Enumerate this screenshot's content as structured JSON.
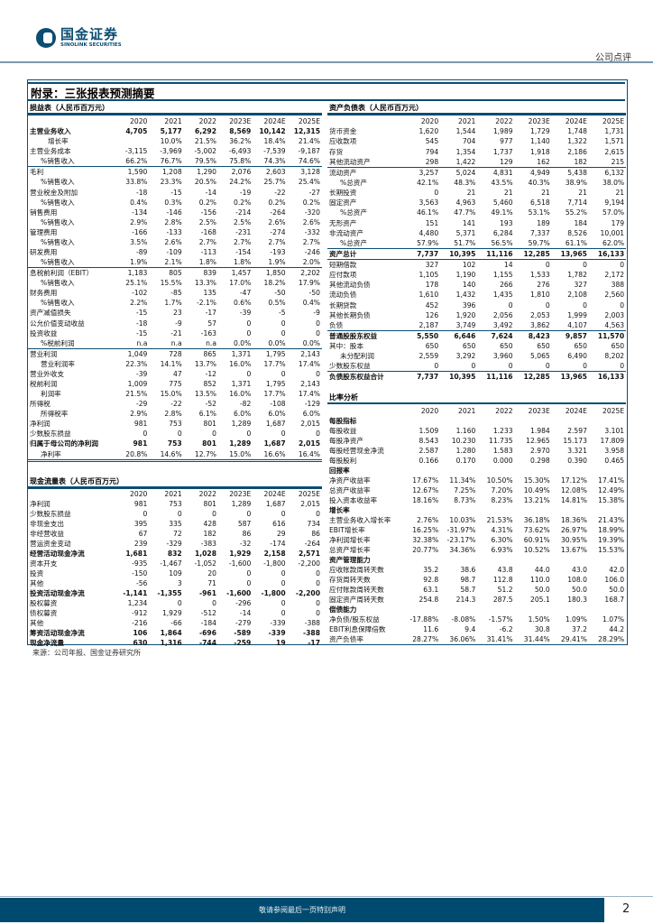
{
  "header": {
    "logo_cn": "国金证券",
    "logo_en": "SINOLINK SECURITIES",
    "doc_type": "公司点评"
  },
  "title": "附录：三张报表预测摘要",
  "years": [
    "2020",
    "2021",
    "2022",
    "2023E",
    "2024E",
    "2025E"
  ],
  "income": {
    "title": "损益表（人民币百万元）",
    "rows": [
      {
        "l": "主营业务收入",
        "v": [
          "4,705",
          "5,177",
          "6,292",
          "8,569",
          "10,142",
          "12,315"
        ],
        "f": "b"
      },
      {
        "l": "增长率",
        "v": [
          "",
          "10.0%",
          "21.5%",
          "36.2%",
          "18.4%",
          "21.4%"
        ],
        "f": "i2"
      },
      {
        "l": "主营业务成本",
        "v": [
          "-3,115",
          "-3,969",
          "-5,002",
          "-6,493",
          "-7,539",
          "-9,187"
        ],
        "f": ""
      },
      {
        "l": "%销售收入",
        "v": [
          "66.2%",
          "76.7%",
          "79.5%",
          "75.8%",
          "74.3%",
          "74.6%"
        ],
        "f": "i1"
      },
      {
        "l": "毛利",
        "v": [
          "1,590",
          "1,208",
          "1,290",
          "2,076",
          "2,603",
          "3,128"
        ],
        "f": "t"
      },
      {
        "l": "%销售收入",
        "v": [
          "33.8%",
          "23.3%",
          "20.5%",
          "24.2%",
          "25.7%",
          "25.4%"
        ],
        "f": "i1"
      },
      {
        "l": "营业税金及附加",
        "v": [
          "-18",
          "-15",
          "-14",
          "-19",
          "-22",
          "-27"
        ],
        "f": ""
      },
      {
        "l": "%销售收入",
        "v": [
          "0.4%",
          "0.3%",
          "0.2%",
          "0.2%",
          "0.2%",
          "0.2%"
        ],
        "f": "i1"
      },
      {
        "l": "销售费用",
        "v": [
          "-134",
          "-146",
          "-156",
          "-214",
          "-264",
          "-320"
        ],
        "f": ""
      },
      {
        "l": "%销售收入",
        "v": [
          "2.9%",
          "2.8%",
          "2.5%",
          "2.5%",
          "2.6%",
          "2.6%"
        ],
        "f": "i1"
      },
      {
        "l": "管理费用",
        "v": [
          "-166",
          "-133",
          "-168",
          "-231",
          "-274",
          "-332"
        ],
        "f": ""
      },
      {
        "l": "%销售收入",
        "v": [
          "3.5%",
          "2.6%",
          "2.7%",
          "2.7%",
          "2.7%",
          "2.7%"
        ],
        "f": "i1"
      },
      {
        "l": "研发费用",
        "v": [
          "-89",
          "-109",
          "-113",
          "-154",
          "-193",
          "-246"
        ],
        "f": ""
      },
      {
        "l": "%销售收入",
        "v": [
          "1.9%",
          "2.1%",
          "1.8%",
          "1.8%",
          "1.9%",
          "2.0%"
        ],
        "f": "i1"
      },
      {
        "l": "息税前利润（EBIT）",
        "v": [
          "1,183",
          "805",
          "839",
          "1,457",
          "1,850",
          "2,202"
        ],
        "f": "t"
      },
      {
        "l": "%销售收入",
        "v": [
          "25.1%",
          "15.5%",
          "13.3%",
          "17.0%",
          "18.2%",
          "17.9%"
        ],
        "f": "i1"
      },
      {
        "l": "财务费用",
        "v": [
          "-102",
          "-85",
          "135",
          "-47",
          "-50",
          "-50"
        ],
        "f": ""
      },
      {
        "l": "%销售收入",
        "v": [
          "2.2%",
          "1.7%",
          "-2.1%",
          "0.6%",
          "0.5%",
          "0.4%"
        ],
        "f": "i1"
      },
      {
        "l": "资产减值损失",
        "v": [
          "-15",
          "23",
          "-17",
          "-39",
          "-5",
          "-9"
        ],
        "f": ""
      },
      {
        "l": "公允价值变动收益",
        "v": [
          "-18",
          "-9",
          "57",
          "0",
          "0",
          "0"
        ],
        "f": ""
      },
      {
        "l": "投资收益",
        "v": [
          "-15",
          "-21",
          "-163",
          "0",
          "0",
          "0"
        ],
        "f": ""
      },
      {
        "l": "%税前利润",
        "v": [
          "n.a",
          "n.a",
          "n.a",
          "0.0%",
          "0.0%",
          "0.0%"
        ],
        "f": "i1"
      },
      {
        "l": "营业利润",
        "v": [
          "1,049",
          "728",
          "865",
          "1,371",
          "1,795",
          "2,143"
        ],
        "f": "t"
      },
      {
        "l": "营业利润率",
        "v": [
          "22.3%",
          "14.1%",
          "13.7%",
          "16.0%",
          "17.7%",
          "17.4%"
        ],
        "f": "i1"
      },
      {
        "l": "营业外收支",
        "v": [
          "-39",
          "47",
          "-12",
          "0",
          "0",
          "0"
        ],
        "f": ""
      },
      {
        "l": "税前利润",
        "v": [
          "1,009",
          "775",
          "852",
          "1,371",
          "1,795",
          "2,143"
        ],
        "f": ""
      },
      {
        "l": "利润率",
        "v": [
          "21.5%",
          "15.0%",
          "13.5%",
          "16.0%",
          "17.7%",
          "17.4%"
        ],
        "f": "i1"
      },
      {
        "l": "所得税",
        "v": [
          "-29",
          "-22",
          "-52",
          "-82",
          "-108",
          "-129"
        ],
        "f": ""
      },
      {
        "l": "所得税率",
        "v": [
          "2.9%",
          "2.8%",
          "6.1%",
          "6.0%",
          "6.0%",
          "6.0%"
        ],
        "f": "i1"
      },
      {
        "l": "净利润",
        "v": [
          "981",
          "753",
          "801",
          "1,289",
          "1,687",
          "2,015"
        ],
        "f": ""
      },
      {
        "l": "少数股东损益",
        "v": [
          "0",
          "0",
          "0",
          "0",
          "0",
          "0"
        ],
        "f": ""
      },
      {
        "l": "归属于母公司的净利润",
        "v": [
          "981",
          "753",
          "801",
          "1,289",
          "1,687",
          "2,015"
        ],
        "f": "b"
      },
      {
        "l": "净利率",
        "v": [
          "20.8%",
          "14.6%",
          "12.7%",
          "15.0%",
          "16.6%",
          "16.4%"
        ],
        "f": "i1 dbl"
      }
    ]
  },
  "cashflow": {
    "title": "现金流量表（人民币百万元）",
    "rows": [
      {
        "l": "净利润",
        "v": [
          "981",
          "753",
          "801",
          "1,289",
          "1,687",
          "2,015"
        ],
        "f": ""
      },
      {
        "l": "少数股东损益",
        "v": [
          "0",
          "0",
          "0",
          "0",
          "0",
          "0"
        ],
        "f": ""
      },
      {
        "l": "非现金支出",
        "v": [
          "395",
          "335",
          "428",
          "587",
          "616",
          "734"
        ],
        "f": ""
      },
      {
        "l": "非经营收益",
        "v": [
          "67",
          "72",
          "182",
          "86",
          "29",
          "86"
        ],
        "f": ""
      },
      {
        "l": "营运资金变动",
        "v": [
          "239",
          "-329",
          "-383",
          "-32",
          "-174",
          "-264"
        ],
        "f": ""
      },
      {
        "l": "经营活动现金净流",
        "v": [
          "1,681",
          "832",
          "1,028",
          "1,929",
          "2,158",
          "2,571"
        ],
        "f": "b"
      },
      {
        "l": "资本开支",
        "v": [
          "-935",
          "-1,467",
          "-1,052",
          "-1,600",
          "-1,800",
          "-2,200"
        ],
        "f": ""
      },
      {
        "l": "投资",
        "v": [
          "-150",
          "109",
          "20",
          "0",
          "0",
          "0"
        ],
        "f": ""
      },
      {
        "l": "其他",
        "v": [
          "-56",
          "3",
          "71",
          "0",
          "0",
          "0"
        ],
        "f": ""
      },
      {
        "l": "投资活动现金净流",
        "v": [
          "-1,141",
          "-1,355",
          "-961",
          "-1,600",
          "-1,800",
          "-2,200"
        ],
        "f": "b"
      },
      {
        "l": "股权募资",
        "v": [
          "1,234",
          "0",
          "0",
          "-296",
          "0",
          "0"
        ],
        "f": ""
      },
      {
        "l": "债权募资",
        "v": [
          "-912",
          "1,929",
          "-512",
          "-14",
          "0",
          "0"
        ],
        "f": ""
      },
      {
        "l": "其他",
        "v": [
          "-216",
          "-66",
          "-184",
          "-279",
          "-339",
          "-388"
        ],
        "f": ""
      },
      {
        "l": "筹资活动现金净流",
        "v": [
          "106",
          "1,864",
          "-696",
          "-589",
          "-339",
          "-388"
        ],
        "f": "b"
      },
      {
        "l": "现金净流量",
        "v": [
          "630",
          "1,316",
          "-744",
          "-259",
          "19",
          "-17"
        ],
        "f": "b"
      }
    ]
  },
  "balance": {
    "title": "资产负债表（人民币百万元）",
    "rows": [
      {
        "l": "货币资金",
        "v": [
          "1,620",
          "1,544",
          "1,989",
          "1,729",
          "1,748",
          "1,731"
        ],
        "f": ""
      },
      {
        "l": "应收款项",
        "v": [
          "545",
          "704",
          "977",
          "1,140",
          "1,322",
          "1,571"
        ],
        "f": ""
      },
      {
        "l": "存货",
        "v": [
          "794",
          "1,354",
          "1,737",
          "1,918",
          "2,186",
          "2,615"
        ],
        "f": ""
      },
      {
        "l": "其他流动资产",
        "v": [
          "298",
          "1,422",
          "129",
          "162",
          "182",
          "215"
        ],
        "f": ""
      },
      {
        "l": "流动资产",
        "v": [
          "3,257",
          "5,024",
          "4,831",
          "4,949",
          "5,438",
          "6,132"
        ],
        "f": "t"
      },
      {
        "l": "%总资产",
        "v": [
          "42.1%",
          "48.3%",
          "43.5%",
          "40.3%",
          "38.9%",
          "38.0%"
        ],
        "f": "i1"
      },
      {
        "l": "长期投资",
        "v": [
          "0",
          "21",
          "21",
          "21",
          "21",
          "21"
        ],
        "f": ""
      },
      {
        "l": "固定资产",
        "v": [
          "3,563",
          "4,963",
          "5,460",
          "6,518",
          "7,714",
          "9,194"
        ],
        "f": ""
      },
      {
        "l": "%总资产",
        "v": [
          "46.1%",
          "47.7%",
          "49.1%",
          "53.1%",
          "55.2%",
          "57.0%"
        ],
        "f": "i1"
      },
      {
        "l": "无形资产",
        "v": [
          "151",
          "141",
          "193",
          "189",
          "184",
          "179"
        ],
        "f": ""
      },
      {
        "l": "非流动资产",
        "v": [
          "4,480",
          "5,371",
          "6,284",
          "7,337",
          "8,526",
          "10,001"
        ],
        "f": ""
      },
      {
        "l": "%总资产",
        "v": [
          "57.9%",
          "51.7%",
          "56.5%",
          "59.7%",
          "61.1%",
          "62.0%"
        ],
        "f": "i1"
      },
      {
        "l": "资产总计",
        "v": [
          "7,737",
          "10,395",
          "11,116",
          "12,285",
          "13,965",
          "16,133"
        ],
        "f": "b t"
      },
      {
        "l": "短期借款",
        "v": [
          "327",
          "102",
          "14",
          "0",
          "0",
          "0"
        ],
        "f": "t"
      },
      {
        "l": "应付款项",
        "v": [
          "1,105",
          "1,190",
          "1,155",
          "1,533",
          "1,782",
          "2,172"
        ],
        "f": ""
      },
      {
        "l": "其他流动负债",
        "v": [
          "178",
          "140",
          "266",
          "276",
          "327",
          "388"
        ],
        "f": ""
      },
      {
        "l": "流动负债",
        "v": [
          "1,610",
          "1,432",
          "1,435",
          "1,810",
          "2,108",
          "2,560"
        ],
        "f": ""
      },
      {
        "l": "长期贷款",
        "v": [
          "452",
          "396",
          "0",
          "0",
          "0",
          "0"
        ],
        "f": ""
      },
      {
        "l": "其他长期负债",
        "v": [
          "126",
          "1,920",
          "2,056",
          "2,053",
          "1,999",
          "2,003"
        ],
        "f": ""
      },
      {
        "l": "负债",
        "v": [
          "2,187",
          "3,749",
          "3,492",
          "3,862",
          "4,107",
          "4,563"
        ],
        "f": ""
      },
      {
        "l": "普通股股东权益",
        "v": [
          "5,550",
          "6,646",
          "7,624",
          "8,423",
          "9,857",
          "11,570"
        ],
        "f": "b t"
      },
      {
        "l": "其中：股本",
        "v": [
          "650",
          "650",
          "650",
          "650",
          "650",
          "650"
        ],
        "f": ""
      },
      {
        "l": "未分配利润",
        "v": [
          "2,559",
          "3,292",
          "3,960",
          "5,065",
          "6,490",
          "8,202"
        ],
        "f": "i1"
      },
      {
        "l": "少数股东权益",
        "v": [
          "0",
          "0",
          "0",
          "0",
          "0",
          "0"
        ],
        "f": ""
      },
      {
        "l": "负债股东权益合计",
        "v": [
          "7,737",
          "10,395",
          "11,116",
          "12,285",
          "13,965",
          "16,133"
        ],
        "f": "b t"
      }
    ]
  },
  "ratios": {
    "title": "比率分析",
    "rows": [
      {
        "l": "每股指标",
        "v": [
          "",
          "",
          "",
          "",
          "",
          ""
        ],
        "f": "b"
      },
      {
        "l": "每股收益",
        "v": [
          "1.509",
          "1.160",
          "1.233",
          "1.984",
          "2.597",
          "3.101"
        ],
        "f": ""
      },
      {
        "l": "每股净资产",
        "v": [
          "8.543",
          "10.230",
          "11.735",
          "12.965",
          "15.173",
          "17.809"
        ],
        "f": ""
      },
      {
        "l": "每股经营现金净流",
        "v": [
          "2.587",
          "1.280",
          "1.583",
          "2.970",
          "3.321",
          "3.958"
        ],
        "f": ""
      },
      {
        "l": "每股股利",
        "v": [
          "0.166",
          "0.170",
          "0.000",
          "0.298",
          "0.390",
          "0.465"
        ],
        "f": ""
      },
      {
        "l": "回报率",
        "v": [
          "",
          "",
          "",
          "",
          "",
          ""
        ],
        "f": "b"
      },
      {
        "l": "净资产收益率",
        "v": [
          "17.67%",
          "11.34%",
          "10.50%",
          "15.30%",
          "17.12%",
          "17.41%"
        ],
        "f": ""
      },
      {
        "l": "总资产收益率",
        "v": [
          "12.67%",
          "7.25%",
          "7.20%",
          "10.49%",
          "12.08%",
          "12.49%"
        ],
        "f": ""
      },
      {
        "l": "投入资本收益率",
        "v": [
          "18.16%",
          "8.73%",
          "8.23%",
          "13.21%",
          "14.81%",
          "15.38%"
        ],
        "f": ""
      },
      {
        "l": "增长率",
        "v": [
          "",
          "",
          "",
          "",
          "",
          ""
        ],
        "f": "b"
      },
      {
        "l": "主营业务收入增长率",
        "v": [
          "2.76%",
          "10.03%",
          "21.53%",
          "36.18%",
          "18.36%",
          "21.43%"
        ],
        "f": ""
      },
      {
        "l": "EBIT增长率",
        "v": [
          "16.25%",
          "-31.97%",
          "4.31%",
          "73.62%",
          "26.97%",
          "18.99%"
        ],
        "f": ""
      },
      {
        "l": "净利润增长率",
        "v": [
          "32.38%",
          "-23.17%",
          "6.30%",
          "60.91%",
          "30.95%",
          "19.39%"
        ],
        "f": ""
      },
      {
        "l": "总资产增长率",
        "v": [
          "20.77%",
          "34.36%",
          "6.93%",
          "10.52%",
          "13.67%",
          "15.53%"
        ],
        "f": ""
      },
      {
        "l": "资产管理能力",
        "v": [
          "",
          "",
          "",
          "",
          "",
          ""
        ],
        "f": "b"
      },
      {
        "l": "应收账款周转天数",
        "v": [
          "35.2",
          "38.6",
          "43.8",
          "44.0",
          "43.0",
          "42.0"
        ],
        "f": ""
      },
      {
        "l": "存货周转天数",
        "v": [
          "92.8",
          "98.7",
          "112.8",
          "110.0",
          "108.0",
          "106.0"
        ],
        "f": ""
      },
      {
        "l": "应付账款周转天数",
        "v": [
          "63.1",
          "58.7",
          "51.2",
          "50.0",
          "50.0",
          "50.0"
        ],
        "f": ""
      },
      {
        "l": "固定资产周转天数",
        "v": [
          "254.8",
          "214.3",
          "287.5",
          "205.1",
          "180.3",
          "168.7"
        ],
        "f": ""
      },
      {
        "l": "偿债能力",
        "v": [
          "",
          "",
          "",
          "",
          "",
          ""
        ],
        "f": "b"
      },
      {
        "l": "净负债/股东权益",
        "v": [
          "-17.88%",
          "-8.08%",
          "-1.57%",
          "1.50%",
          "1.09%",
          "1.07%"
        ],
        "f": ""
      },
      {
        "l": "EBIT利息保障倍数",
        "v": [
          "11.6",
          "9.4",
          "-6.2",
          "30.8",
          "37.2",
          "44.2"
        ],
        "f": ""
      },
      {
        "l": "资产负债率",
        "v": [
          "28.27%",
          "36.06%",
          "31.41%",
          "31.44%",
          "29.41%",
          "28.29%"
        ],
        "f": ""
      }
    ]
  },
  "source": "来源：公司年报、国金证券研究所",
  "footer": {
    "notice": "敬请参阅最后一页特别声明",
    "page": "2"
  },
  "colors": {
    "brand": "#0b4d73",
    "footer": "#004a70"
  }
}
